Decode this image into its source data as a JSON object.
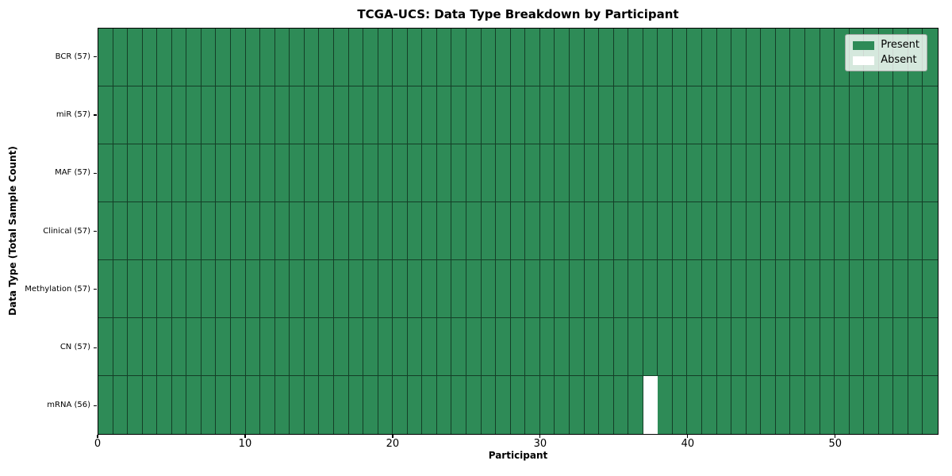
{
  "chart_data": {
    "type": "heatmap",
    "title": "TCGA-UCS: Data Type Breakdown by Participant",
    "xlabel": "Participant",
    "ylabel": "Data Type (Total Sample Count)",
    "n_participants": 57,
    "x_axis": {
      "min": 0,
      "max": 57,
      "ticks": [
        0,
        10,
        20,
        30,
        40,
        50
      ]
    },
    "grid_on": true,
    "rows": [
      {
        "label": "BCR (57)",
        "data_type": "BCR",
        "total_samples": 57,
        "absent_participants": []
      },
      {
        "label": "miR (57)",
        "data_type": "miR",
        "total_samples": 57,
        "absent_participants": []
      },
      {
        "label": "MAF (57)",
        "data_type": "MAF",
        "total_samples": 57,
        "absent_participants": []
      },
      {
        "label": "Clinical (57)",
        "data_type": "Clinical",
        "total_samples": 57,
        "absent_participants": []
      },
      {
        "label": "Methylation (57)",
        "data_type": "Methylation",
        "total_samples": 57,
        "absent_participants": []
      },
      {
        "label": "CN (57)",
        "data_type": "CN",
        "total_samples": 57,
        "absent_participants": []
      },
      {
        "label": "mRNA (56)",
        "data_type": "mRNA",
        "total_samples": 56,
        "absent_participants": [
          37
        ]
      }
    ],
    "legend": {
      "position": "upper right",
      "entries": [
        {
          "label": "Present",
          "color": "#2E8B57"
        },
        {
          "label": "Absent",
          "color": "#FFFFFF"
        }
      ]
    },
    "colors": {
      "present": "#2E8B57",
      "absent": "#FFFFFF",
      "gridline": "rgba(0,0,0,0.55)",
      "spine": "#000000"
    }
  }
}
